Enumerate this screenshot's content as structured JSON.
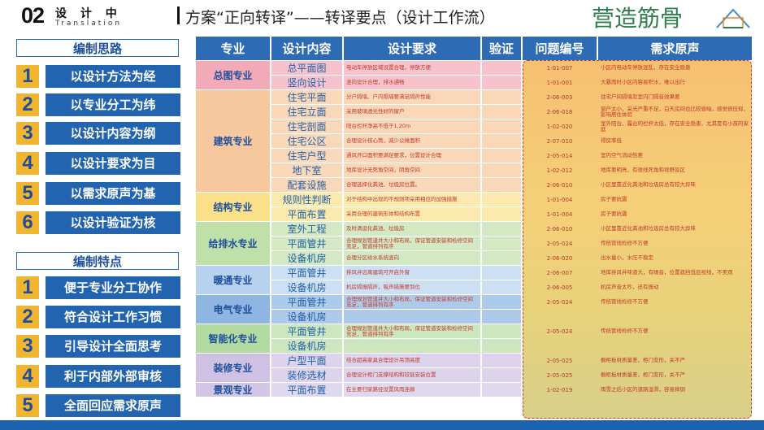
{
  "header": {
    "number": "02",
    "label": "设 计 中",
    "label_en": "Translation",
    "title": "方案“正向转译”——转译要点（设计工作流）",
    "brand": "营造筋骨"
  },
  "left": {
    "sections": [
      {
        "title": "编制思路",
        "items": [
          {
            "num": "1",
            "text": "以设计方法为经"
          },
          {
            "num": "2",
            "text": "以专业分工为纬"
          },
          {
            "num": "3",
            "text": "以设计内容为纲"
          },
          {
            "num": "4",
            "text": "以设计要求为目"
          },
          {
            "num": "5",
            "text": "以需求原声为基"
          },
          {
            "num": "6",
            "text": "以设计验证为核"
          }
        ]
      },
      {
        "title": "编制特点",
        "items": [
          {
            "num": "1",
            "text": "便于专业分工协作"
          },
          {
            "num": "2",
            "text": "符合设计工作习惯"
          },
          {
            "num": "3",
            "text": "引导设计全面思考"
          },
          {
            "num": "4",
            "text": "利于内部外部审核"
          },
          {
            "num": "5",
            "text": "全面回应需求原声"
          }
        ]
      }
    ]
  },
  "table": {
    "header": [
      "专业",
      "设计内容",
      "设计要求",
      "验证",
      "问题编号",
      "需求原声"
    ],
    "groups": [
      {
        "name": "总图专业",
        "rows": [
          {
            "content": "总平面图",
            "requirement": "电动车停放区域设置合理，停放方便",
            "code": "1-01-007",
            "voice": "小区内电动车停放混乱，存在安全隐患"
          },
          {
            "content": "竖向设计",
            "requirement": "竖向设计合理，排水通畅",
            "code": "1-01-001",
            "voice": "大暴雨时小区内容易积水，难以出行"
          }
        ]
      },
      {
        "name": "建筑专业",
        "rows": [
          {
            "content": "住宅平面",
            "requirement": "分户隔墙、户内隔墙要满足隔声性能",
            "code": "2-06-003",
            "voice": "住宅户间隔墙及室内门隔音效果差"
          },
          {
            "content": "住宅立面",
            "requirement": "采用玻璃透光性好的窗户",
            "code": "2-06-018",
            "voice": "窗户太小，采光严重不足，白天房间也比较昏暗，感觉很压抑，影响居住体验"
          },
          {
            "content": "住宅剖面",
            "requirement": "阳台栏杆净高不低于1.20m",
            "code": "1-02-020",
            "voice": "室外阳台、露台的栏杆太低，存在安全隐患，尤其是有小孩的家庭"
          },
          {
            "content": "住宅公区",
            "requirement": "合理设计核心筒，减少公摊面积",
            "code": "2-07-010",
            "voice": "得房率低"
          },
          {
            "content": "住宅户型",
            "requirement": "通风开口面积要满足要求，位置设计合理",
            "code": "2-05-014",
            "voice": "室内空气流动性差"
          },
          {
            "content": "地下室",
            "requirement": "地库设计无死角空间，阴角空间",
            "code": "1-02-012",
            "voice": "地库要明亮，有很线死角和视野盲区"
          },
          {
            "content": "配套设施",
            "requirement": "合理选择化粪池、垃圾房位置。",
            "code": "2-06-010",
            "voice": "小区里靠近化粪池和垃圾房总有较大异味"
          }
        ]
      },
      {
        "name": "结构专业",
        "rows": [
          {
            "content": "规则性判断",
            "requirement": "对于结构中出现的不规则项采用相应的加强措施",
            "code": "1-01-004",
            "voice": "房子要抗震"
          },
          {
            "content": "平面布置",
            "requirement": "采用合理的建筑形体和结构布置",
            "code": "1-01-004",
            "voice": "房子要抗震"
          }
        ]
      },
      {
        "name": "给排水专业",
        "rows": [
          {
            "content": "室外工程",
            "requirement": "及时清运化粪池、垃圾房",
            "code": "2-06-010",
            "voice": "小区里靠近化粪池和垃圾房总有较大异味"
          },
          {
            "content": "平面管井",
            "requirement": "合理规划管道井大小和布局，保证管道安装和检修空间充足，管道排列有序",
            "code": "2-05-024",
            "voice": "传统管线检修不方便"
          },
          {
            "content": "设备机房",
            "requirement": "合理分区给水系统竖向",
            "code": "2-06-020",
            "voice": "出水量小，水压不稳定"
          }
        ]
      },
      {
        "name": "暖通专业",
        "rows": [
          {
            "content": "平面管井",
            "requirement": "排风井远离建筑可开启外窗",
            "code": "2-06-007",
            "voice": "地库排风井味道大，有噪音，位置遮挡低层视线，不美观"
          },
          {
            "content": "设备机房",
            "requirement": "机房隔振隔声，吸声措施要到位",
            "code": "2-06-005",
            "voice": "机房声音太吵，还有振动"
          }
        ]
      },
      {
        "name": "电气专业",
        "rows": [
          {
            "content": "平面管井",
            "requirement": "合理规划管道井大小和布局，保证管道安装和检修空间充足，管道排列有序",
            "code": "2-05-024",
            "voice": "传统管线检修不方便"
          },
          {
            "content": "设备机房"
          }
        ]
      },
      {
        "name": "智能化专业",
        "rows": [
          {
            "content": "平面管井",
            "requirement": "合理规划管道井大小和布局，保证管道安装和检修空间充足，管道排列有序",
            "code": "2-05-024",
            "voice": "传统管线检修不方便"
          },
          {
            "content": "设备机房"
          }
        ]
      },
      {
        "name": "装修专业",
        "rows": [
          {
            "content": "户型平面",
            "requirement": "结合超高家具合理设计吊顶高度",
            "code": "2-05-025",
            "voice": "橱柜板材质量差，柜门变形，关不严"
          },
          {
            "content": "装修选材",
            "requirement": "合理设计柜门支撑结构和铰链安装位置",
            "code": "2-05-025",
            "voice": "橱柜板材质量差，柜门变形，关不严"
          }
        ]
      },
      {
        "name": "景观专业",
        "rows": [
          {
            "content": "平面布置",
            "requirement": "在主要归家路径设置风雨连廊",
            "code": "1-02-019",
            "voice": "雨雪之后小区的道路湿滑，容易摔倒"
          }
        ]
      }
    ]
  }
}
